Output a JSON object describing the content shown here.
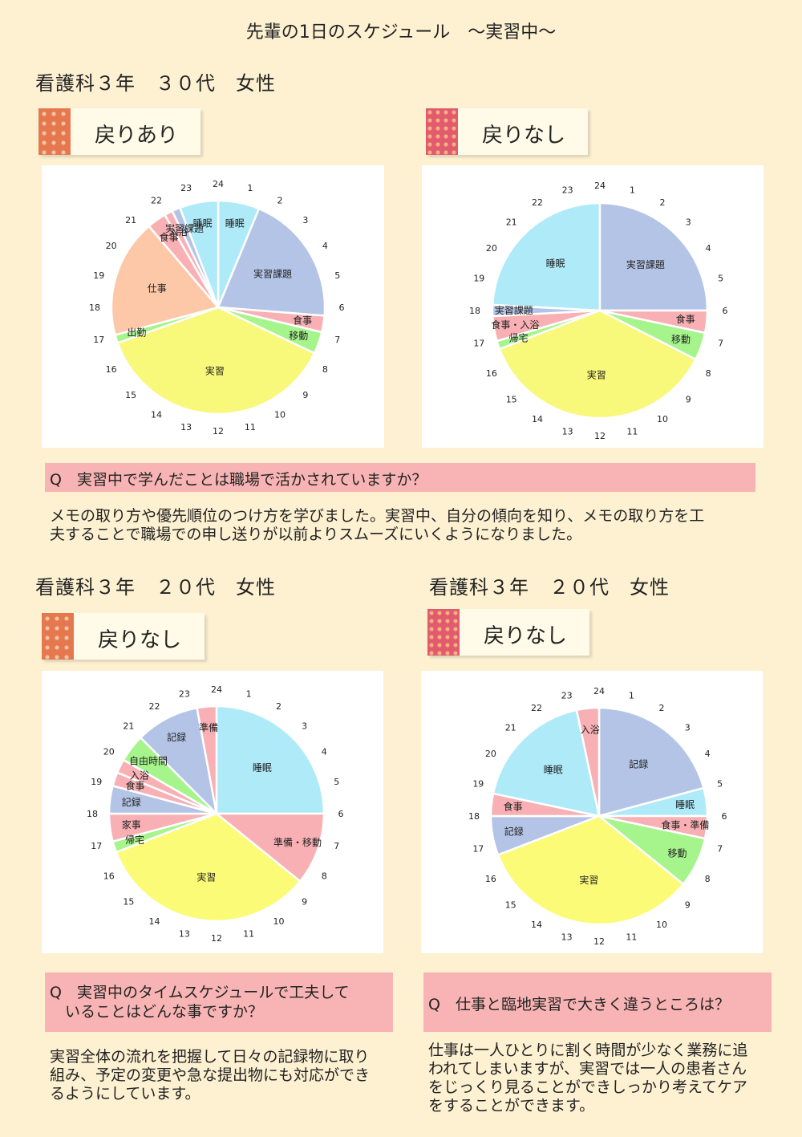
{
  "page": {
    "title": "先輩の1日のスケジュール　～実習中～"
  },
  "colors": {
    "background": "#fdf1d2",
    "qbox": "#f8b4b4",
    "panel": "#ffffff"
  },
  "sections": [
    {
      "person": "看護科３年　３０代　女性",
      "tag": "戻りあり",
      "tag_icon": "orange-star-pattern",
      "chart_data": {
        "type": "pie",
        "hour_labels": [
          "24",
          "1",
          "2",
          "3",
          "4",
          "5",
          "6",
          "7",
          "8",
          "9",
          "10",
          "11",
          "12",
          "13",
          "14",
          "15",
          "16",
          "17",
          "18",
          "19",
          "20",
          "21",
          "22",
          "23"
        ],
        "slices": [
          {
            "label": "睡眠",
            "start": 0,
            "end": 1.5,
            "color": "#aeeaf8"
          },
          {
            "label": "実習課題",
            "start": 1.5,
            "end": 6.3,
            "color": "#b4c4e6"
          },
          {
            "label": "食事",
            "start": 6.3,
            "end": 6.9,
            "color": "#f8b0b4"
          },
          {
            "label": "移動",
            "start": 6.9,
            "end": 7.7,
            "color": "#a6f48c"
          },
          {
            "label": "実習",
            "start": 7.7,
            "end": 16.7,
            "color": "#f8f87a"
          },
          {
            "label": "出勤",
            "start": 16.7,
            "end": 17.0,
            "color": "#a6f48c"
          },
          {
            "label": "仕事",
            "start": 17.0,
            "end": 21.3,
            "color": "#fcc8a8"
          },
          {
            "label": "食事",
            "start": 21.3,
            "end": 22.0,
            "color": "#f8b0b4"
          },
          {
            "label": "入浴",
            "start": 22.0,
            "end": 22.3,
            "color": "#f8b0b4"
          },
          {
            "label": "実習課題",
            "start": 22.3,
            "end": 22.6,
            "color": "#b4c4e6"
          },
          {
            "label": "睡眠",
            "start": 22.6,
            "end": 24,
            "color": "#aeeaf8"
          }
        ]
      }
    },
    {
      "person": "",
      "tag": "戻りなし",
      "tag_icon": "pink-pattern",
      "chart_data": {
        "type": "pie",
        "hour_labels": [
          "24",
          "1",
          "2",
          "3",
          "4",
          "5",
          "6",
          "7",
          "8",
          "9",
          "10",
          "11",
          "12",
          "13",
          "14",
          "15",
          "16",
          "17",
          "18",
          "19",
          "20",
          "21",
          "22",
          "23"
        ],
        "slices": [
          {
            "label": "睡眠",
            "start": 18.2,
            "end": 24,
            "color": "#aeeaf8"
          },
          {
            "label": "実習課題",
            "start": 0,
            "end": 6.0,
            "color": "#b4c4e6"
          },
          {
            "label": "食事",
            "start": 6.0,
            "end": 6.8,
            "color": "#f8b0b4"
          },
          {
            "label": "移動",
            "start": 6.8,
            "end": 7.8,
            "color": "#a6f48c"
          },
          {
            "label": "実習",
            "start": 7.8,
            "end": 16.6,
            "color": "#f8f87a"
          },
          {
            "label": "帰宅",
            "start": 16.6,
            "end": 16.9,
            "color": "#a6f48c"
          },
          {
            "label": "食事・入浴",
            "start": 16.9,
            "end": 17.8,
            "color": "#f8b0b4"
          },
          {
            "label": "実習課題",
            "start": 17.8,
            "end": 18.2,
            "color": "#b4c4e6"
          }
        ]
      }
    },
    {
      "person": "看護科３年　２０代　女性",
      "tag": "戻りなし",
      "tag_icon": "orange-star-pattern",
      "chart_data": {
        "type": "pie",
        "hour_labels": [
          "24",
          "1",
          "2",
          "3",
          "4",
          "5",
          "6",
          "7",
          "8",
          "9",
          "10",
          "11",
          "12",
          "13",
          "14",
          "15",
          "16",
          "17",
          "18",
          "19",
          "20",
          "21",
          "22",
          "23"
        ],
        "slices": [
          {
            "label": "睡眠",
            "start": 0,
            "end": 6.0,
            "color": "#aeeaf8"
          },
          {
            "label": "準備・移動",
            "start": 6.0,
            "end": 8.6,
            "color": "#f8b0b4"
          },
          {
            "label": "実習",
            "start": 8.6,
            "end": 16.6,
            "color": "#fbfb78"
          },
          {
            "label": "帰宅",
            "start": 16.6,
            "end": 17.0,
            "color": "#a6f48c"
          },
          {
            "label": "家事",
            "start": 17.0,
            "end": 18.0,
            "color": "#f8b0b4"
          },
          {
            "label": "記録",
            "start": 18.0,
            "end": 19.0,
            "color": "#b4c4e6"
          },
          {
            "label": "食事",
            "start": 19.0,
            "end": 19.5,
            "color": "#f8b0b4"
          },
          {
            "label": "入浴",
            "start": 19.5,
            "end": 20.0,
            "color": "#f8b0b4"
          },
          {
            "label": "自由時間",
            "start": 20.0,
            "end": 21.0,
            "color": "#a6f48c"
          },
          {
            "label": "記録",
            "start": 21.0,
            "end": 23.3,
            "color": "#b4c4e6"
          },
          {
            "label": "準備",
            "start": 23.3,
            "end": 24,
            "color": "#f8b0b4"
          }
        ]
      }
    },
    {
      "person": "看護科３年　２０代　女性",
      "tag": "戻りなし",
      "tag_icon": "pink-pattern",
      "chart_data": {
        "type": "pie",
        "hour_labels": [
          "24",
          "1",
          "2",
          "3",
          "4",
          "5",
          "6",
          "7",
          "8",
          "9",
          "10",
          "11",
          "12",
          "13",
          "14",
          "15",
          "16",
          "17",
          "18",
          "19",
          "20",
          "21",
          "22",
          "23"
        ],
        "slices": [
          {
            "label": "記録",
            "start": 0,
            "end": 5.0,
            "color": "#b4c4e6"
          },
          {
            "label": "睡眠",
            "start": 5.0,
            "end": 6.0,
            "color": "#aeeaf8"
          },
          {
            "label": "食事・準備",
            "start": 6.0,
            "end": 6.8,
            "color": "#f8b0b4"
          },
          {
            "label": "移動",
            "start": 6.8,
            "end": 8.6,
            "color": "#a6f48c"
          },
          {
            "label": "実習",
            "start": 8.6,
            "end": 16.6,
            "color": "#fbfb78"
          },
          {
            "label": "記録",
            "start": 16.6,
            "end": 18.0,
            "color": "#b4c4e6"
          },
          {
            "label": "食事",
            "start": 18.0,
            "end": 18.8,
            "color": "#f8b0b4"
          },
          {
            "label": "睡眠",
            "start": 18.8,
            "end": 23.2,
            "color": "#aeeaf8"
          },
          {
            "label": "入浴",
            "start": 23.2,
            "end": 24,
            "color": "#f8b0b4"
          }
        ]
      }
    }
  ],
  "qa": [
    {
      "question": "Q　実習中で学んだことは職場で活かされていますか？",
      "answer": [
        "メモの取り方や優先順位のつけ方を学びました。実習中、自分の傾向を知り、メモの取り方を工",
        "夫することで職場での申し送りが以前よりスムーズにいくようになりました。"
      ]
    },
    {
      "question": [
        "Q　実習中のタイムスケジュールで工夫して",
        "　いることはどんな事ですか？"
      ],
      "answer": [
        "実習全体の流れを把握して日々の記録物に取り",
        "組み、予定の変更や急な提出物にも対応ができ",
        "るようにしています。"
      ]
    },
    {
      "question": "Q　仕事と臨地実習で大きく違うところは？",
      "answer": [
        "仕事は一人ひとりに割く時間が少なく業務に追",
        "われてしまいますが、実習では一人の患者さん",
        "をじっくり見ることができしっかり考えてケア",
        "をすることができます。"
      ]
    }
  ]
}
